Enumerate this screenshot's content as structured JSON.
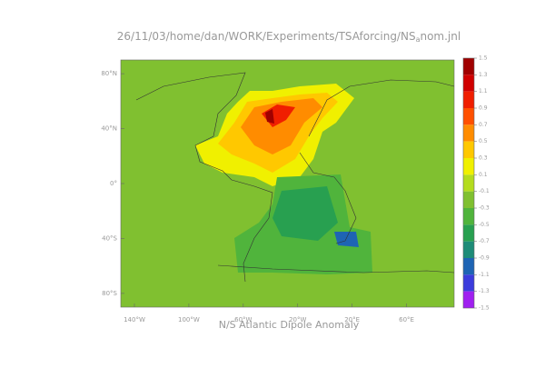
{
  "title": {
    "prefix": "26/11/03/home/dan/WORK/Experiments/TSAforcing/NS",
    "subscript": "a",
    "suffix": "nom.jnl"
  },
  "caption": "N/S Atlantic Dipole Anomaly",
  "map": {
    "xlim": [
      -150,
      95
    ],
    "ylim": [
      -90,
      90
    ],
    "xticks": [
      {
        "value": -140,
        "label": "140°W"
      },
      {
        "value": -100,
        "label": "100°W"
      },
      {
        "value": -60,
        "label": "60°W"
      },
      {
        "value": -20,
        "label": "20°W"
      },
      {
        "value": 20,
        "label": "20°E"
      },
      {
        "value": 60,
        "label": "60°E"
      }
    ],
    "yticks": [
      {
        "value": 80,
        "label": "80°N"
      },
      {
        "value": 40,
        "label": "40°N"
      },
      {
        "value": 0,
        "label": "0°"
      },
      {
        "value": -40,
        "label": "40°S"
      },
      {
        "value": -80,
        "label": "80°S"
      }
    ]
  },
  "colorbar": {
    "levels": [
      1.5,
      1.3,
      1.1,
      0.9,
      0.7,
      0.5,
      0.3,
      0.1,
      -0.1,
      -0.3,
      -0.5,
      -0.7,
      -0.9,
      -1.1,
      -1.3,
      -1.5
    ],
    "colors": [
      "#a00000",
      "#d00000",
      "#f01e00",
      "#ff5000",
      "#ff8c00",
      "#ffc800",
      "#f0f000",
      "#b4dc1e",
      "#80c030",
      "#50b43c",
      "#28a050",
      "#1e8c78",
      "#1e64b4",
      "#3c3cdc",
      "#a020f0"
    ]
  }
}
